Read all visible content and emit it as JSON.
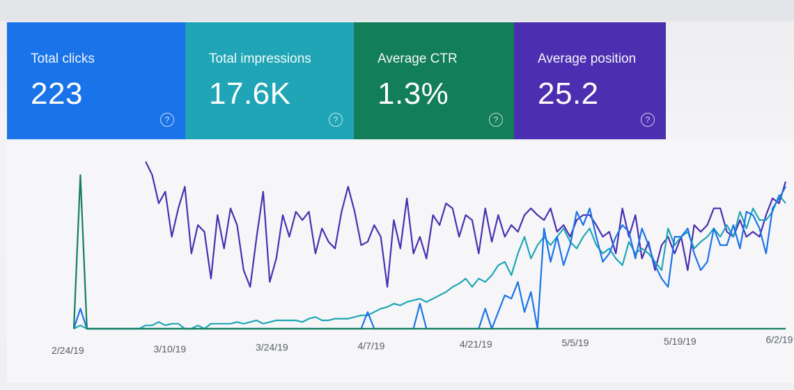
{
  "metrics": [
    {
      "label": "Total clicks",
      "value": "223",
      "help": "?"
    },
    {
      "label": "Total impressions",
      "value": "17.6K",
      "help": "?"
    },
    {
      "label": "Average CTR",
      "value": "1.3%",
      "help": "?"
    },
    {
      "label": "Average position",
      "value": "25.2",
      "help": "?"
    }
  ],
  "colors": {
    "clicks": "#1a73e8",
    "impressions": "#1fa5b5",
    "ctr": "#137e5a",
    "position": "#4b2fb0"
  },
  "chart_data": {
    "type": "line",
    "title": "",
    "xlabel": "",
    "ylabel": "",
    "grid": false,
    "x_ticks": [
      "2/24/19",
      "3/10/19",
      "3/24/19",
      "4/7/19",
      "4/21/19",
      "5/5/19",
      "5/19/19",
      "6/2/19"
    ],
    "series": [
      {
        "key": "position",
        "color": "#4b2fb0",
        "values": [
          null,
          null,
          null,
          null,
          null,
          null,
          null,
          null,
          null,
          null,
          null,
          100,
          92,
          75,
          82,
          55,
          72,
          85,
          45,
          62,
          58,
          30,
          68,
          48,
          72,
          62,
          35,
          25,
          55,
          82,
          28,
          42,
          68,
          55,
          70,
          65,
          70,
          45,
          60,
          52,
          48,
          70,
          85,
          70,
          50,
          52,
          62,
          55,
          25,
          65,
          48,
          78,
          45,
          55,
          42,
          68,
          62,
          75,
          72,
          55,
          68,
          65,
          45,
          72,
          52,
          68,
          55,
          62,
          58,
          68,
          72,
          68,
          65,
          72,
          58,
          62,
          55,
          65,
          68,
          68,
          62,
          55,
          58,
          45,
          72,
          55,
          68,
          42,
          52,
          35,
          50,
          55,
          45,
          55,
          35,
          62,
          58,
          62,
          72,
          72,
          58,
          55,
          65,
          55,
          58,
          55,
          68,
          78,
          75,
          88
        ]
      },
      {
        "key": "impressions",
        "color": "#1fa5b5",
        "values": [
          0,
          2,
          0,
          0,
          0,
          0,
          0,
          0,
          0,
          0,
          0,
          2,
          2,
          4,
          2,
          3,
          3,
          0,
          0,
          2,
          0,
          3,
          3,
          3,
          3,
          4,
          3,
          4,
          5,
          3,
          4,
          5,
          5,
          5,
          5,
          4,
          6,
          7,
          5,
          5,
          6,
          6,
          6,
          7,
          8,
          8,
          10,
          12,
          13,
          15,
          14,
          16,
          17,
          18,
          16,
          18,
          20,
          22,
          25,
          27,
          30,
          25,
          30,
          28,
          32,
          38,
          40,
          32,
          45,
          55,
          42,
          50,
          55,
          50,
          55,
          60,
          52,
          48,
          55,
          60,
          50,
          45,
          48,
          42,
          38,
          52,
          45,
          48,
          45,
          40,
          35,
          60,
          50,
          55,
          58,
          48,
          52,
          55,
          60,
          55,
          62,
          55,
          70,
          60,
          72,
          65,
          65,
          70,
          80,
          75
        ]
      },
      {
        "key": "clicks",
        "color": "#1a73e8",
        "values": [
          0,
          12,
          0,
          0,
          0,
          0,
          0,
          0,
          0,
          0,
          0,
          0,
          0,
          0,
          0,
          0,
          0,
          0,
          0,
          0,
          0,
          0,
          0,
          0,
          0,
          0,
          0,
          0,
          0,
          0,
          0,
          0,
          0,
          0,
          0,
          0,
          0,
          0,
          0,
          0,
          0,
          0,
          0,
          0,
          0,
          10,
          0,
          0,
          0,
          0,
          0,
          0,
          0,
          15,
          0,
          0,
          0,
          0,
          0,
          0,
          0,
          0,
          0,
          12,
          0,
          10,
          20,
          18,
          28,
          10,
          22,
          0,
          60,
          40,
          55,
          38,
          50,
          70,
          62,
          72,
          55,
          40,
          45,
          55,
          62,
          58,
          42,
          60,
          50,
          38,
          30,
          25,
          55,
          55,
          60,
          45,
          35,
          40,
          60,
          50,
          50,
          62,
          48,
          70,
          68,
          60,
          45,
          72,
          78,
          85
        ]
      },
      {
        "key": "ctr",
        "color": "#137e5a",
        "values": [
          0,
          92,
          0,
          0,
          0,
          0,
          0,
          0,
          0,
          0,
          0,
          0,
          0,
          0,
          0,
          0,
          0,
          0,
          0,
          0,
          0,
          0,
          0,
          0,
          0,
          0,
          0,
          0,
          0,
          0,
          0,
          0,
          0,
          0,
          0,
          0,
          0,
          0,
          0,
          0,
          0,
          0,
          0,
          0,
          0,
          0,
          0,
          0,
          0,
          0,
          0,
          0,
          0,
          0,
          0,
          0,
          0,
          0,
          0,
          0,
          0,
          0,
          0,
          0,
          0,
          0,
          0,
          0,
          0,
          0,
          0,
          0,
          0,
          0,
          0,
          0,
          0,
          0,
          0,
          0,
          0,
          0,
          0,
          0,
          0,
          0,
          0,
          0,
          0,
          0,
          0,
          0,
          0,
          0,
          0,
          0,
          0,
          0,
          0,
          0,
          0,
          0,
          0,
          0,
          0,
          0,
          0,
          0,
          0,
          0
        ]
      }
    ]
  }
}
